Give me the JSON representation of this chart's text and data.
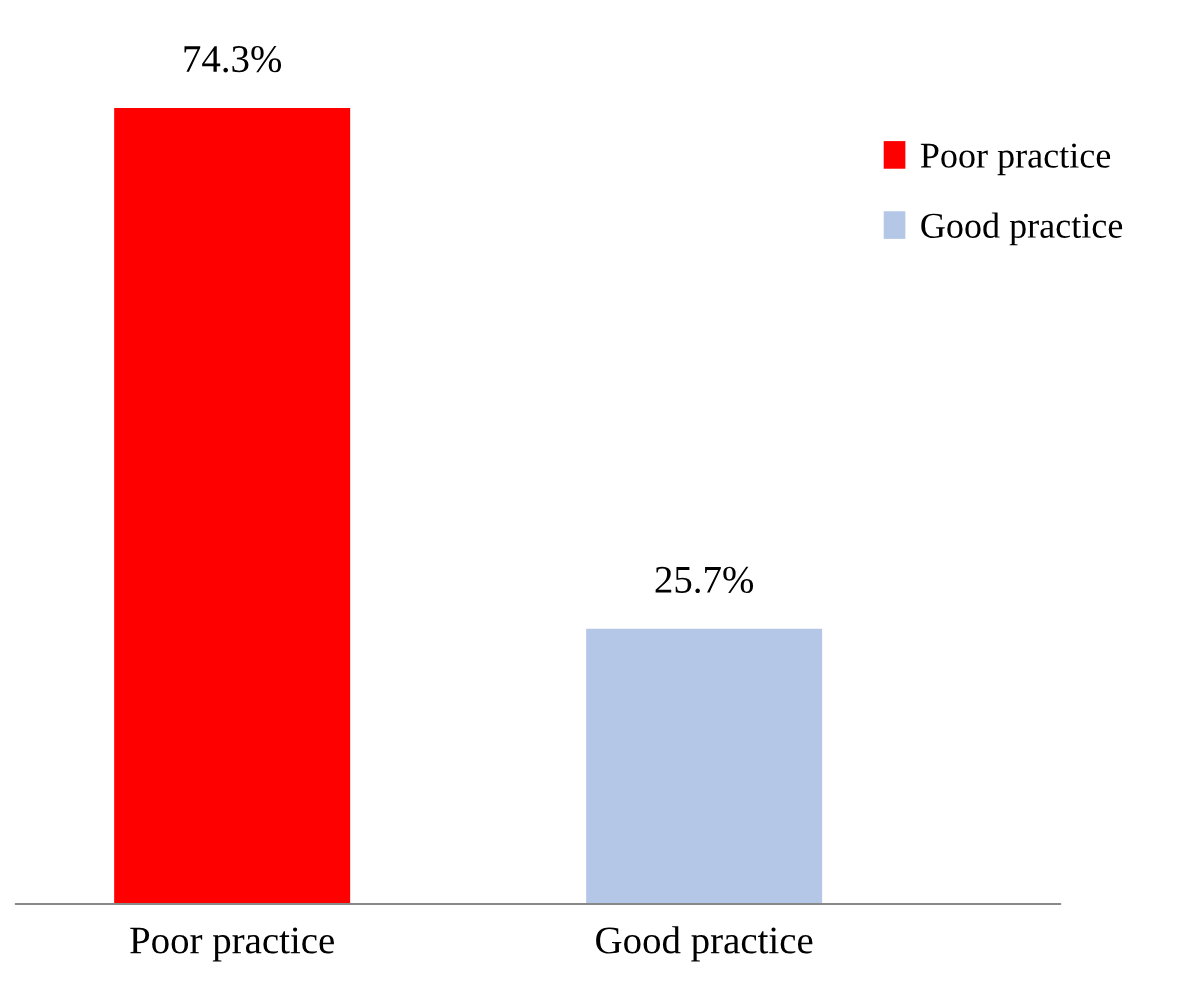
{
  "chart_data": {
    "type": "bar",
    "categories": [
      "Poor practice",
      "Good practice"
    ],
    "series": [
      {
        "name": "Poor practice",
        "color": "#ff0000",
        "values": [
          74.3,
          null
        ],
        "value_labels": [
          "74.3%",
          null
        ]
      },
      {
        "name": "Good practice",
        "color": "#b4c7e7",
        "values": [
          null,
          25.7
        ],
        "value_labels": [
          null,
          "25.7%"
        ]
      }
    ],
    "legend": "top right",
    "grid": false
  }
}
